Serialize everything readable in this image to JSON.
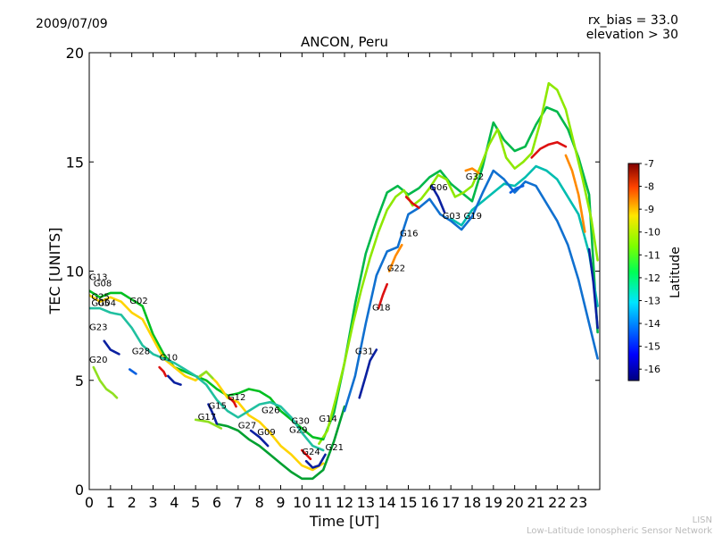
{
  "header": {
    "date": "2009/07/09",
    "rx_bias": "rx_bias = 33.0",
    "elevation": "elevation > 30"
  },
  "footer": {
    "line1": "LISN",
    "line2": "Low-Latitude Ionospheric Sensor Network"
  },
  "chart_data": {
    "type": "line",
    "title": "ANCON, Peru",
    "xlabel": "Time [UT]",
    "ylabel": "TEC [UNITS]",
    "xlim": [
      0,
      24
    ],
    "ylim": [
      0,
      20
    ],
    "xticks": [
      "0",
      "1",
      "2",
      "3",
      "4",
      "5",
      "6",
      "7",
      "8",
      "9",
      "10",
      "11",
      "12",
      "13",
      "14",
      "15",
      "16",
      "17",
      "18",
      "19",
      "20",
      "21",
      "22",
      "23"
    ],
    "yticks": [
      "0",
      "5",
      "10",
      "15",
      "20"
    ],
    "colorbar": {
      "label": "Latitude",
      "range": [
        -16.5,
        -7
      ],
      "ticks": [
        "-7",
        "-8",
        "-9",
        "-10",
        "-11",
        "-12",
        "-13",
        "-14",
        "-15",
        "-16"
      ]
    },
    "series": [
      {
        "name": "envelope-a",
        "color": "#00b84a",
        "x": [
          11,
          11.5,
          12,
          12.5,
          13,
          13.5,
          14,
          14.5,
          15,
          15.5,
          16,
          16.5,
          17,
          17.5,
          18,
          18.5,
          19,
          19.5,
          20,
          20.5,
          21,
          21.5,
          22,
          22.5,
          23,
          23.5,
          23.9
        ],
        "y": [
          2.3,
          3.5,
          5.8,
          8.5,
          10.8,
          12.3,
          13.6,
          13.9,
          13.5,
          13.8,
          14.3,
          14.6,
          14.0,
          13.6,
          13.2,
          14.8,
          16.8,
          16.0,
          15.5,
          15.7,
          16.7,
          17.5,
          17.3,
          16.5,
          15.2,
          13.5,
          7.2
        ]
      },
      {
        "name": "envelope-b",
        "color": "#8ee800",
        "x": [
          10.8,
          11.2,
          11.6,
          12,
          12.4,
          12.8,
          13.2,
          13.6,
          14,
          14.4,
          14.8,
          15.2,
          15.6,
          16,
          16.4,
          16.8,
          17.2,
          17.6,
          18,
          18.4,
          18.8,
          19.2,
          19.6,
          20,
          20.4,
          20.8,
          21.2,
          21.6,
          22,
          22.4,
          22.8,
          23.2,
          23.6,
          23.9
        ],
        "y": [
          2.1,
          2.7,
          4.2,
          5.8,
          7.6,
          9.2,
          10.6,
          11.8,
          12.8,
          13.4,
          13.7,
          13.0,
          13.3,
          13.8,
          14.4,
          14.2,
          13.4,
          13.6,
          13.9,
          14.8,
          15.8,
          16.5,
          15.2,
          14.7,
          15.0,
          15.4,
          16.8,
          18.6,
          18.3,
          17.4,
          15.8,
          14.2,
          12.4,
          10.5
        ]
      },
      {
        "name": "envelope-c",
        "color": "#00c020",
        "x": [
          0,
          0.5,
          1,
          1.5,
          2,
          2.5,
          3,
          3.5,
          4,
          4.5,
          5,
          5.5,
          6,
          6.5,
          7,
          7.5,
          8,
          8.5,
          9,
          9.5,
          10,
          10.5,
          11
        ],
        "y": [
          9.1,
          8.8,
          9.0,
          9.0,
          8.7,
          8.4,
          7.1,
          6.2,
          5.6,
          5.4,
          5.2,
          5.0,
          4.6,
          4.3,
          4.4,
          4.6,
          4.5,
          4.2,
          3.6,
          3.2,
          2.8,
          2.4,
          2.3
        ]
      },
      {
        "name": "envelope-d",
        "color": "#ffd400",
        "x": [
          0,
          0.5,
          1,
          1.5,
          2,
          2.5,
          3,
          3.5,
          4,
          4.5,
          5,
          5.5,
          6,
          6.5,
          7,
          7.5,
          8,
          8.5,
          9,
          9.5,
          10,
          10.5,
          11
        ],
        "y": [
          8.9,
          8.6,
          8.8,
          8.6,
          8.1,
          7.8,
          6.9,
          6.0,
          5.6,
          5.2,
          5.0,
          5.4,
          4.9,
          4.2,
          4.0,
          3.4,
          3.1,
          2.6,
          2.0,
          1.6,
          1.1,
          0.9,
          1.2
        ]
      },
      {
        "name": "envelope-e",
        "color": "#20c0a0",
        "x": [
          0,
          0.5,
          1,
          1.5,
          2,
          2.5,
          3,
          3.5,
          4,
          4.5,
          5,
          5.5,
          6,
          6.5,
          7,
          7.5,
          8,
          8.5,
          9,
          9.5,
          10,
          10.5,
          11
        ],
        "y": [
          8.3,
          8.3,
          8.1,
          8.0,
          7.4,
          6.6,
          6.2,
          6.0,
          5.8,
          5.5,
          5.2,
          4.8,
          4.1,
          3.6,
          3.3,
          3.6,
          3.9,
          4.0,
          3.8,
          3.3,
          2.6,
          2.0,
          1.8
        ]
      },
      {
        "name": "envelope-f",
        "color": "#00a030",
        "x": [
          6,
          6.5,
          7,
          7.5,
          8,
          8.5,
          9,
          9.5,
          10,
          10.5,
          11,
          11.5,
          12
        ],
        "y": [
          3.0,
          2.9,
          2.7,
          2.3,
          2.0,
          1.6,
          1.2,
          0.8,
          0.5,
          0.5,
          0.9,
          2.2,
          3.8
        ]
      },
      {
        "name": "envelope-g",
        "color": "#00bdb0",
        "x": [
          17,
          17.5,
          18,
          18.5,
          19,
          19.5,
          20,
          20.5,
          21,
          21.5,
          22,
          22.5,
          23,
          23.5,
          23.9
        ],
        "y": [
          12.4,
          12.1,
          12.8,
          13.2,
          13.6,
          14.0,
          13.9,
          14.3,
          14.8,
          14.6,
          14.2,
          13.4,
          12.6,
          10.8,
          8.4
        ]
      },
      {
        "name": "envelope-h",
        "color": "#1070d0",
        "x": [
          12,
          12.5,
          13,
          13.5,
          14,
          14.5,
          15,
          15.5,
          16,
          16.5,
          17,
          17.5,
          18,
          18.5,
          19,
          19.5,
          20,
          20.5,
          21,
          21.5,
          22,
          22.5,
          23,
          23.5,
          23.9
        ],
        "y": [
          3.6,
          5.2,
          7.6,
          9.8,
          10.9,
          11.1,
          12.6,
          12.9,
          13.3,
          12.6,
          12.3,
          11.9,
          12.5,
          13.6,
          14.6,
          14.2,
          13.6,
          14.1,
          13.9,
          13.1,
          12.3,
          11.2,
          9.6,
          7.6,
          6.0
        ]
      },
      {
        "name": "seg-red-1",
        "color": "#dd1010",
        "x": [
          14.9,
          15.2,
          15.5
        ],
        "y": [
          13.4,
          13.1,
          12.9
        ]
      },
      {
        "name": "seg-red-2",
        "color": "#dd1010",
        "x": [
          20.8,
          21.2,
          21.6,
          22,
          22.4
        ],
        "y": [
          15.2,
          15.6,
          15.8,
          15.9,
          15.7
        ]
      },
      {
        "name": "seg-red-3",
        "color": "#dd1010",
        "x": [
          3.3,
          3.5,
          3.6
        ],
        "y": [
          5.6,
          5.4,
          5.2
        ]
      },
      {
        "name": "seg-red-4",
        "color": "#dd1010",
        "x": [
          10,
          10.2,
          10.4
        ],
        "y": [
          1.8,
          1.6,
          1.4
        ]
      },
      {
        "name": "seg-red-5",
        "color": "#dd1010",
        "x": [
          13.6,
          13.8,
          14
        ],
        "y": [
          8.3,
          8.9,
          9.4
        ]
      },
      {
        "name": "seg-red-6",
        "color": "#dd1010",
        "x": [
          6.6,
          6.8,
          6.9
        ],
        "y": [
          4.2,
          4.0,
          3.8
        ]
      },
      {
        "name": "seg-orange-1",
        "color": "#ff8a00",
        "x": [
          14.1,
          14.4,
          14.7
        ],
        "y": [
          10.0,
          10.7,
          11.2
        ]
      },
      {
        "name": "seg-orange-2",
        "color": "#ff8a00",
        "x": [
          22.4,
          22.7,
          23,
          23.3
        ],
        "y": [
          15.3,
          14.6,
          13.5,
          11.8
        ]
      },
      {
        "name": "seg-orange-3",
        "color": "#ff8a00",
        "x": [
          17.7,
          18,
          18.3
        ],
        "y": [
          14.6,
          14.7,
          14.5
        ]
      },
      {
        "name": "seg-navy-1",
        "color": "#0a20a0",
        "x": [
          12.7,
          13,
          13.2,
          13.5
        ],
        "y": [
          4.2,
          5.2,
          5.9,
          6.4
        ]
      },
      {
        "name": "seg-navy-2",
        "color": "#0a20a0",
        "x": [
          10.2,
          10.5,
          10.8,
          11.1
        ],
        "y": [
          1.3,
          1.0,
          1.1,
          1.6
        ]
      },
      {
        "name": "seg-navy-3",
        "color": "#0a20a0",
        "x": [
          16.1,
          16.4,
          16.7
        ],
        "y": [
          13.9,
          13.4,
          12.7
        ]
      },
      {
        "name": "seg-navy-4",
        "color": "#0a20a0",
        "x": [
          23.5,
          23.7,
          23.9
        ],
        "y": [
          11.0,
          9.5,
          7.4
        ]
      },
      {
        "name": "seg-navy-5",
        "color": "#0a20a0",
        "x": [
          0.7,
          1.0,
          1.4
        ],
        "y": [
          6.8,
          6.4,
          6.2
        ]
      },
      {
        "name": "seg-navy-6",
        "color": "#0a20a0",
        "x": [
          3.7,
          4.0,
          4.3
        ],
        "y": [
          5.2,
          4.9,
          4.8
        ]
      },
      {
        "name": "seg-navy-7",
        "color": "#0a20a0",
        "x": [
          7.6,
          8.0,
          8.4
        ],
        "y": [
          2.7,
          2.4,
          2.0
        ]
      },
      {
        "name": "seg-navy-8",
        "color": "#0a20a0",
        "x": [
          5.6,
          5.8,
          6.0
        ],
        "y": [
          3.9,
          3.5,
          3.0
        ]
      },
      {
        "name": "seg-blue-1",
        "color": "#0a60e0",
        "x": [
          19.8,
          20.1,
          20.4
        ],
        "y": [
          13.6,
          13.8,
          13.9
        ]
      },
      {
        "name": "seg-blue-2",
        "color": "#0a60e0",
        "x": [
          1.9,
          2.2
        ],
        "y": [
          5.5,
          5.3
        ]
      },
      {
        "name": "seg-lime-1",
        "color": "#90e020",
        "x": [
          0.2,
          0.5,
          0.8,
          1.1,
          1.3
        ],
        "y": [
          5.6,
          5.0,
          4.6,
          4.4,
          4.2
        ]
      },
      {
        "name": "seg-lime-2",
        "color": "#90e020",
        "x": [
          5.2,
          5.5,
          5.8
        ],
        "y": [
          5.2,
          5.4,
          5.1
        ]
      },
      {
        "name": "seg-lime-3",
        "color": "#90e020",
        "x": [
          5.0,
          5.6,
          6.2
        ],
        "y": [
          3.2,
          3.1,
          2.8
        ]
      }
    ],
    "annotations": [
      {
        "text": "G13",
        "x": 0.0,
        "y": 9.6
      },
      {
        "text": "G08",
        "x": 0.2,
        "y": 9.3
      },
      {
        "text": "G25",
        "x": 0.1,
        "y": 8.7
      },
      {
        "text": "G04",
        "x": 0.4,
        "y": 8.4
      },
      {
        "text": "G05",
        "x": 0.1,
        "y": 8.4
      },
      {
        "text": "G02",
        "x": 1.9,
        "y": 8.5
      },
      {
        "text": "G23",
        "x": 0.0,
        "y": 7.3
      },
      {
        "text": "G28",
        "x": 2.0,
        "y": 6.2
      },
      {
        "text": "G20",
        "x": 0.0,
        "y": 5.8
      },
      {
        "text": "G10",
        "x": 3.3,
        "y": 5.9
      },
      {
        "text": "G12",
        "x": 6.5,
        "y": 4.1
      },
      {
        "text": "G15",
        "x": 5.6,
        "y": 3.7
      },
      {
        "text": "G17",
        "x": 5.1,
        "y": 3.2
      },
      {
        "text": "G26",
        "x": 8.1,
        "y": 3.5
      },
      {
        "text": "G27",
        "x": 7.0,
        "y": 2.8
      },
      {
        "text": "G09",
        "x": 7.9,
        "y": 2.5
      },
      {
        "text": "G30",
        "x": 9.5,
        "y": 3.0
      },
      {
        "text": "G29",
        "x": 9.4,
        "y": 2.6
      },
      {
        "text": "G14",
        "x": 10.8,
        "y": 3.1
      },
      {
        "text": "G21",
        "x": 11.1,
        "y": 1.8
      },
      {
        "text": "G24",
        "x": 10.0,
        "y": 1.6
      },
      {
        "text": "G31",
        "x": 12.5,
        "y": 6.2
      },
      {
        "text": "G18",
        "x": 13.3,
        "y": 8.2
      },
      {
        "text": "G22",
        "x": 14.0,
        "y": 10.0
      },
      {
        "text": "G16",
        "x": 14.6,
        "y": 11.6
      },
      {
        "text": "G06",
        "x": 16.0,
        "y": 13.7
      },
      {
        "text": "G03",
        "x": 16.6,
        "y": 12.4
      },
      {
        "text": "G19",
        "x": 17.6,
        "y": 12.4
      },
      {
        "text": "G32",
        "x": 17.7,
        "y": 14.2
      }
    ]
  }
}
